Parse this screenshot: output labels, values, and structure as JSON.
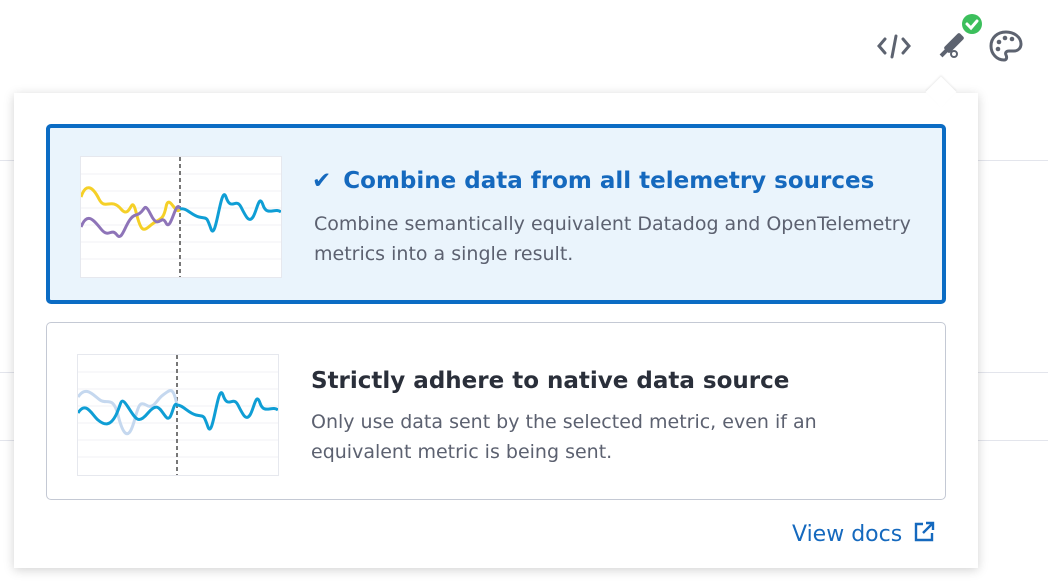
{
  "toolbar": {
    "icons": [
      "code-icon",
      "telescope-icon",
      "palette-icon"
    ],
    "status_badge": "check",
    "badge_color": "#3cbf5c"
  },
  "options": [
    {
      "title": "Combine data from all telemetry sources",
      "description": "Combine semantically equivalent Datadog and OpenTelemetry metrics into a single result.",
      "selected": true
    },
    {
      "title": "Strictly adhere to native data source",
      "description": "Only use data sent by the selected metric, even if an equivalent metric is being sent.",
      "selected": false
    }
  ],
  "footer": {
    "docs_label": "View docs",
    "docs_icon": "external-link-icon"
  },
  "colors": {
    "accent": "#0b6cc4",
    "selected_bg": "#eaf4fc"
  }
}
